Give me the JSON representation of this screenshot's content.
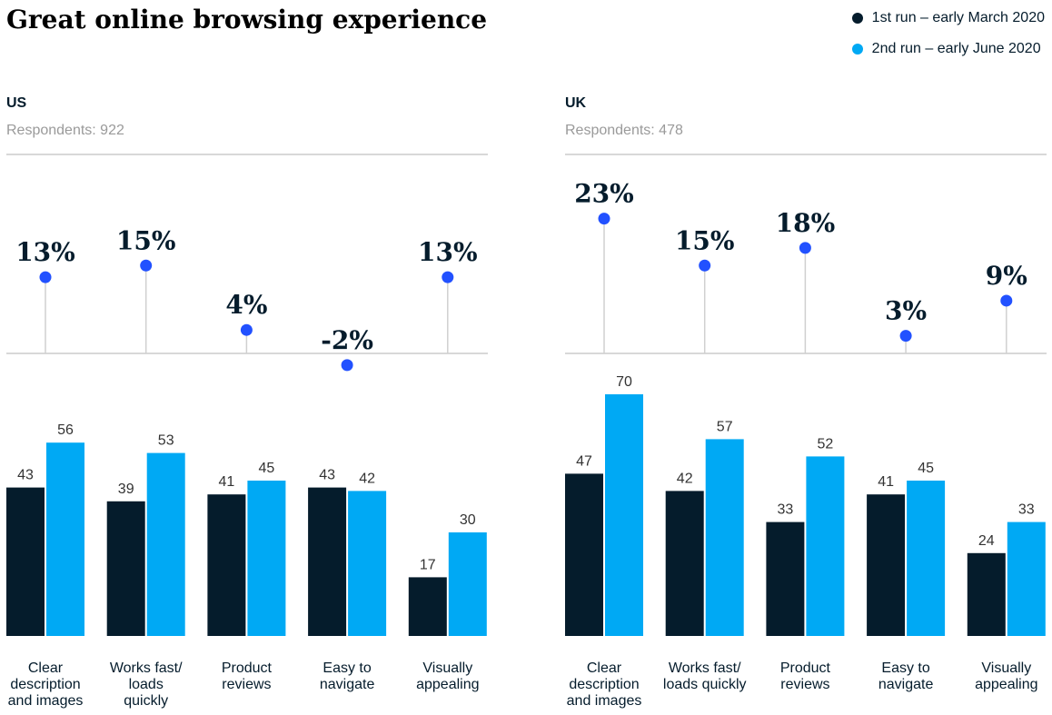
{
  "title": "Great online browsing experience",
  "legend": [
    {
      "label": "1st run – early March 2020",
      "color": "#051c2c"
    },
    {
      "label": "2nd run – early June 2020",
      "color": "#00a9f4"
    }
  ],
  "colors": {
    "first_run": "#051c2c",
    "second_run": "#00a9f4",
    "dot": "#2251ff",
    "stem": "#d0d0d0",
    "rule": "#cccccc"
  },
  "chart_data": [
    {
      "type": "bar",
      "panel": "US",
      "respondents_label": "Respondents: 922",
      "categories": [
        [
          "Clear",
          "description",
          "and images"
        ],
        [
          "Works fast/",
          "loads",
          "quickly"
        ],
        [
          "Product",
          "reviews"
        ],
        [
          "Easy to",
          "navigate"
        ],
        [
          "Visually",
          "appealing"
        ]
      ],
      "series": [
        {
          "name": "1st run – early March 2020",
          "values": [
            43,
            39,
            41,
            43,
            17
          ]
        },
        {
          "name": "2nd run – early June 2020",
          "values": [
            56,
            53,
            45,
            42,
            30
          ]
        }
      ],
      "change_labels": [
        "13%",
        "15%",
        "4%",
        "-2%",
        "13%"
      ],
      "change_values": [
        13,
        15,
        4,
        -2,
        13
      ]
    },
    {
      "type": "bar",
      "panel": "UK",
      "respondents_label": "Respondents: 478",
      "categories": [
        [
          "Clear",
          "description",
          "and images"
        ],
        [
          "Works fast/",
          "loads quickly"
        ],
        [
          "Product",
          "reviews"
        ],
        [
          "Easy to",
          "navigate"
        ],
        [
          "Visually",
          "appealing"
        ]
      ],
      "series": [
        {
          "name": "1st run – early March 2020",
          "values": [
            47,
            42,
            33,
            41,
            24
          ]
        },
        {
          "name": "2nd run – early June 2020",
          "values": [
            70,
            57,
            52,
            45,
            33
          ]
        }
      ],
      "change_labels": [
        "23%",
        "15%",
        "18%",
        "3%",
        "9%"
      ],
      "change_values": [
        23,
        15,
        18,
        3,
        9
      ]
    }
  ]
}
